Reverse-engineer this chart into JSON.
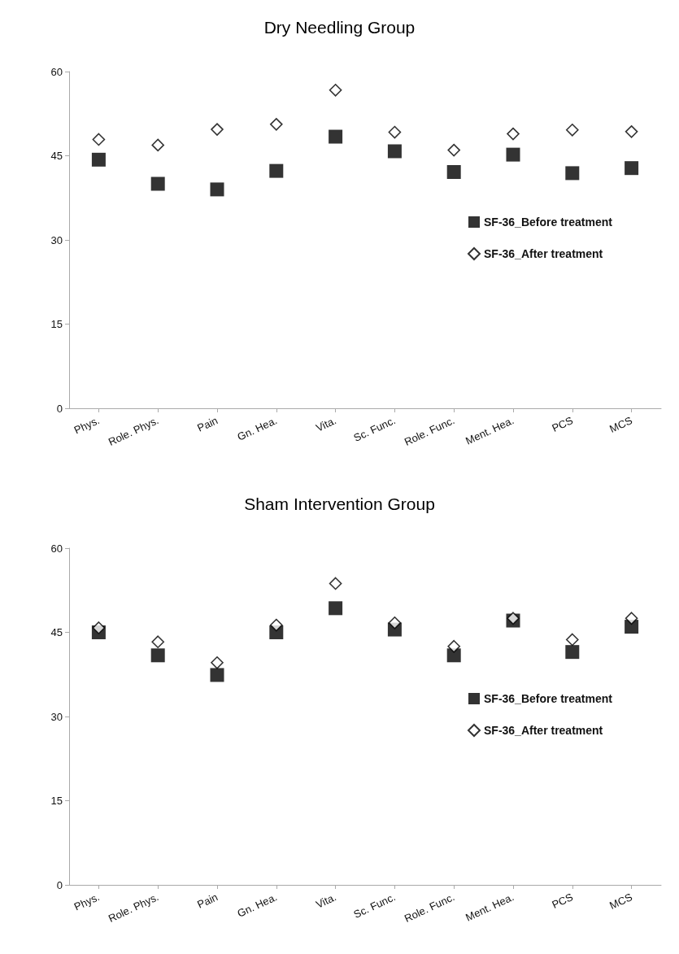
{
  "chart_data": [
    {
      "type": "scatter",
      "title": "Dry Needling Group",
      "categories": [
        "Phys.",
        "Role. Phys.",
        "Pain",
        "Gn. Hea.",
        "Vita.",
        "Sc. Func.",
        "Role. Func.",
        "Ment. Hea.",
        "PCS",
        "MCS"
      ],
      "series": [
        {
          "name": "SF-36_Before treatment",
          "color": "#000000",
          "marker": "square",
          "values": [
            44.3,
            40.0,
            39.0,
            42.3,
            48.4,
            45.8,
            42.1,
            45.2,
            41.9,
            42.8
          ]
        },
        {
          "name": "SF-36_After treatment",
          "color": "#ffffff",
          "marker": "diamond",
          "values": [
            47.9,
            46.9,
            49.7,
            50.6,
            56.7,
            49.2,
            46.0,
            48.9,
            49.6,
            49.3
          ]
        }
      ],
      "ylim": [
        0,
        60
      ],
      "yticks": [
        0,
        15,
        30,
        45,
        60
      ],
      "grid": false,
      "legend": "right"
    },
    {
      "type": "scatter",
      "title": "Sham Intervention Group",
      "categories": [
        "Phys.",
        "Role. Phys.",
        "Pain",
        "Gn. Hea.",
        "Vita.",
        "Sc. Func.",
        "Role. Func.",
        "Ment. Hea.",
        "PCS",
        "MCS"
      ],
      "series": [
        {
          "name": "SF-36_Before treatment",
          "color": "#000000",
          "marker": "square",
          "values": [
            45.0,
            40.9,
            37.4,
            45.0,
            49.3,
            45.5,
            40.9,
            47.1,
            41.5,
            46.0
          ]
        },
        {
          "name": "SF-36_After treatment",
          "color": "#ffffff",
          "marker": "diamond",
          "values": [
            45.8,
            43.3,
            39.6,
            46.3,
            53.7,
            46.7,
            42.5,
            47.5,
            43.7,
            47.5
          ]
        }
      ],
      "ylim": [
        0,
        60
      ],
      "yticks": [
        0,
        15,
        30,
        45,
        60
      ],
      "grid": false,
      "legend": "right"
    }
  ]
}
